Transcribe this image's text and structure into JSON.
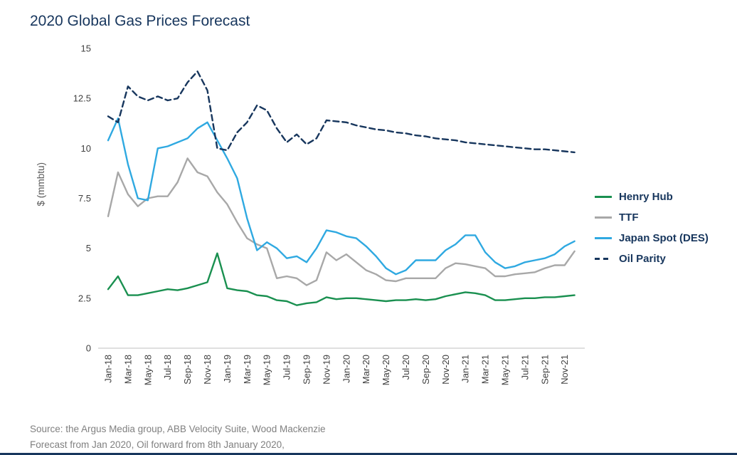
{
  "source": {
    "line1": "Source: the Argus Media group, ABB Velocity Suite, Wood Mackenzie",
    "line2": "Forecast from Jan 2020, Oil forward from 8th January 2020,"
  },
  "chart_data": {
    "type": "line",
    "title": "2020 Global Gas Prices Forecast",
    "xlabel": "",
    "ylabel": "$ (mmbtu)",
    "ylim": [
      0,
      15
    ],
    "y_ticks": [
      0,
      2.5,
      5,
      7.5,
      10,
      12.5,
      15
    ],
    "grid": "off",
    "legend_position": "right",
    "title_color": "#17365d",
    "axis_text_color": "#404040",
    "categories": [
      "Jan-18",
      "Feb-18",
      "Mar-18",
      "Apr-18",
      "May-18",
      "Jun-18",
      "Jul-18",
      "Aug-18",
      "Sep-18",
      "Oct-18",
      "Nov-18",
      "Dec-18",
      "Jan-19",
      "Feb-19",
      "Mar-19",
      "Apr-19",
      "May-19",
      "Jun-19",
      "Jul-19",
      "Aug-19",
      "Sep-19",
      "Oct-19",
      "Nov-19",
      "Dec-19",
      "Jan-20",
      "Feb-20",
      "Mar-20",
      "Apr-20",
      "May-20",
      "Jun-20",
      "Jul-20",
      "Aug-20",
      "Sep-20",
      "Oct-20",
      "Nov-20",
      "Dec-20",
      "Jan-21",
      "Feb-21",
      "Mar-21",
      "Apr-21",
      "May-21",
      "Jun-21",
      "Jul-21",
      "Aug-21",
      "Sep-21",
      "Oct-21",
      "Nov-21",
      "Dec-21"
    ],
    "x_tick_every": 2,
    "series": [
      {
        "name": "Henry Hub",
        "color": "#1a9050",
        "dash": "none",
        "values": [
          2.95,
          3.6,
          2.65,
          2.65,
          2.75,
          2.85,
          2.95,
          2.9,
          3.0,
          3.15,
          3.3,
          4.75,
          3.0,
          2.9,
          2.85,
          2.65,
          2.6,
          2.4,
          2.35,
          2.15,
          2.25,
          2.3,
          2.55,
          2.45,
          2.5,
          2.5,
          2.45,
          2.4,
          2.35,
          2.4,
          2.4,
          2.45,
          2.4,
          2.45,
          2.6,
          2.7,
          2.8,
          2.75,
          2.65,
          2.4,
          2.4,
          2.45,
          2.5,
          2.5,
          2.55,
          2.55,
          2.6,
          2.65
        ]
      },
      {
        "name": "TTF",
        "color": "#a8a8a8",
        "dash": "none",
        "values": [
          6.6,
          8.8,
          7.7,
          7.1,
          7.5,
          7.6,
          7.6,
          8.3,
          9.5,
          8.8,
          8.6,
          7.8,
          7.2,
          6.3,
          5.5,
          5.2,
          5.0,
          3.5,
          3.6,
          3.5,
          3.15,
          3.4,
          4.8,
          4.4,
          4.7,
          4.3,
          3.9,
          3.7,
          3.4,
          3.35,
          3.5,
          3.5,
          3.5,
          3.5,
          4.0,
          4.25,
          4.2,
          4.1,
          4.0,
          3.6,
          3.6,
          3.7,
          3.75,
          3.8,
          4.0,
          4.15,
          4.15,
          4.85
        ]
      },
      {
        "name": "Japan Spot (DES)",
        "color": "#2fa9e1",
        "dash": "none",
        "values": [
          10.4,
          11.5,
          9.2,
          7.5,
          7.4,
          10.0,
          10.1,
          10.3,
          10.5,
          11.0,
          11.3,
          10.4,
          9.5,
          8.5,
          6.5,
          4.9,
          5.3,
          5.0,
          4.5,
          4.6,
          4.3,
          5.0,
          5.9,
          5.8,
          5.6,
          5.5,
          5.1,
          4.6,
          4.0,
          3.7,
          3.9,
          4.4,
          4.4,
          4.4,
          4.9,
          5.2,
          5.65,
          5.65,
          4.8,
          4.3,
          4.0,
          4.1,
          4.3,
          4.4,
          4.5,
          4.7,
          5.1,
          5.35
        ]
      },
      {
        "name": "Oil Parity",
        "color": "#17365d",
        "dash": "8 5",
        "values": [
          11.6,
          11.3,
          13.1,
          12.6,
          12.4,
          12.6,
          12.4,
          12.5,
          13.3,
          13.85,
          12.9,
          10.0,
          9.9,
          10.8,
          11.3,
          12.15,
          11.9,
          11.0,
          10.3,
          10.7,
          10.2,
          10.5,
          11.4,
          11.35,
          11.3,
          11.15,
          11.05,
          10.95,
          10.9,
          10.8,
          10.75,
          10.65,
          10.6,
          10.5,
          10.45,
          10.4,
          10.3,
          10.25,
          10.2,
          10.15,
          10.1,
          10.05,
          10.0,
          9.95,
          9.95,
          9.9,
          9.85,
          9.8
        ]
      }
    ]
  }
}
